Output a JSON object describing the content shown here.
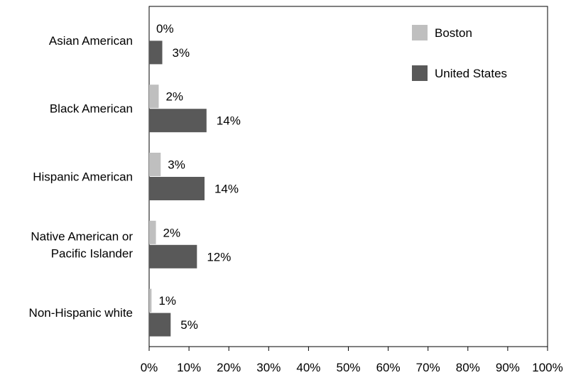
{
  "chart_data": {
    "type": "bar",
    "orientation": "horizontal",
    "categories": [
      [
        "Asian American"
      ],
      [
        "Black American"
      ],
      [
        "Hispanic American"
      ],
      [
        "Native American or",
        "Pacific Islander"
      ],
      [
        "Non-Hispanic white"
      ]
    ],
    "series": [
      {
        "name": "Boston",
        "color": "#bfbfbf",
        "values": [
          0,
          2.4,
          2.9,
          1.7,
          0.6
        ],
        "data_labels": [
          "0%",
          "2%",
          "3%",
          "2%",
          "1%"
        ]
      },
      {
        "name": "United States",
        "color": "#595959",
        "values": [
          3.3,
          14.4,
          13.9,
          12.0,
          5.4
        ],
        "data_labels": [
          "3%",
          "14%",
          "14%",
          "12%",
          "5%"
        ]
      }
    ],
    "xlim": [
      0,
      100
    ],
    "x_ticks": [
      "0%",
      "10%",
      "20%",
      "30%",
      "40%",
      "50%",
      "60%",
      "70%",
      "80%",
      "90%",
      "100%"
    ],
    "grid": false,
    "legend": "top-right"
  }
}
